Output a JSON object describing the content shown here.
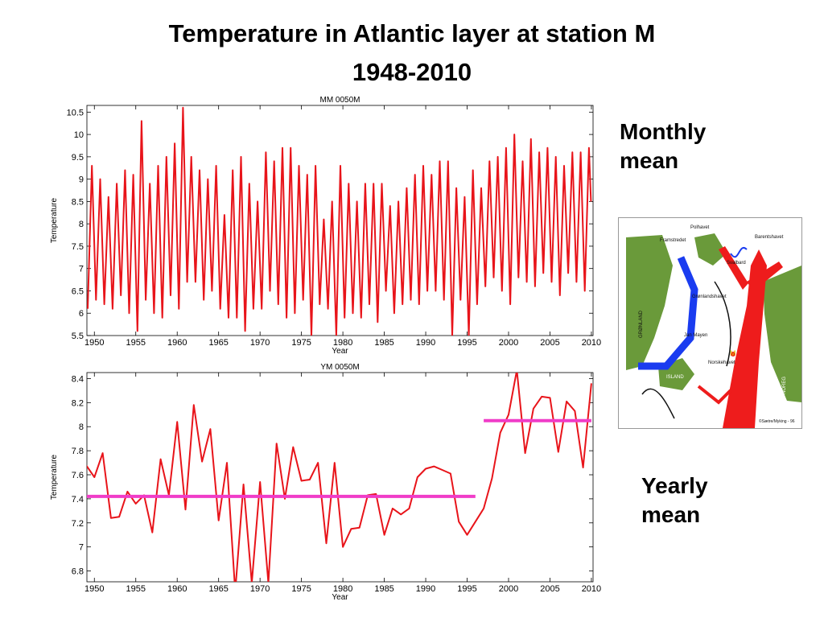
{
  "title": "Temperature in Atlantic layer at station M",
  "subtitle": "1948-2010",
  "side_labels": {
    "monthly": "Monthly mean",
    "yearly": "Yearly mean"
  },
  "map": {
    "labels": [
      "Polhavet",
      "Barentshavet",
      "Framstredet",
      "Svalbard",
      "Grønlandshavet",
      "GRØNLAND",
      "Jan Mayen",
      "Norskehavet",
      "ISLAND",
      "NOREG",
      "M",
      "©Sætre/Myking - 96"
    ]
  },
  "chart_data": [
    {
      "type": "line",
      "title": "MM 0050M",
      "xlabel": "Year",
      "ylabel": "Temperature",
      "xlim": [
        1949.1,
        2010.2
      ],
      "xticks": [
        1950,
        1955,
        1960,
        1965,
        1970,
        1975,
        1980,
        1985,
        1990,
        1995,
        2000,
        2005,
        2010
      ],
      "ylim": [
        5.5,
        10.65
      ],
      "yticks": [
        5.5,
        6,
        6.5,
        7,
        7.5,
        8,
        8.5,
        9,
        9.5,
        10,
        10.5
      ],
      "series": [
        {
          "color": "#e8141a",
          "x": [
            1949.2,
            1949.7,
            1950.2,
            1950.7,
            1951.2,
            1951.7,
            1952.2,
            1952.7,
            1953.2,
            1953.7,
            1954.2,
            1954.7,
            1955.2,
            1955.7,
            1956.2,
            1956.7,
            1957.2,
            1957.7,
            1958.2,
            1958.7,
            1959.2,
            1959.7,
            1960.2,
            1960.7,
            1961.2,
            1961.7,
            1962.2,
            1962.7,
            1963.2,
            1963.7,
            1964.2,
            1964.7,
            1965.2,
            1965.7,
            1966.2,
            1966.7,
            1967.2,
            1967.7,
            1968.2,
            1968.7,
            1969.2,
            1969.7,
            1970.2,
            1970.7,
            1971.2,
            1971.7,
            1972.2,
            1972.7,
            1973.2,
            1973.7,
            1974.2,
            1974.7,
            1975.2,
            1975.7,
            1976.2,
            1976.7,
            1977.2,
            1977.7,
            1978.2,
            1978.7,
            1979.2,
            1979.7,
            1980.2,
            1980.7,
            1981.2,
            1981.7,
            1982.2,
            1982.7,
            1983.2,
            1983.7,
            1984.2,
            1984.7,
            1985.2,
            1985.7,
            1986.2,
            1986.7,
            1987.2,
            1987.7,
            1988.2,
            1988.7,
            1989.2,
            1989.7,
            1990.2,
            1990.7,
            1991.2,
            1991.7,
            1992.2,
            1992.7,
            1993.2,
            1993.7,
            1994.2,
            1994.7,
            1995.2,
            1995.7,
            1996.2,
            1996.7,
            1997.2,
            1997.7,
            1998.2,
            1998.7,
            1999.2,
            1999.7,
            2000.2,
            2000.7,
            2001.2,
            2001.7,
            2002.2,
            2002.7,
            2003.2,
            2003.7,
            2004.2,
            2004.7,
            2005.2,
            2005.7,
            2006.2,
            2006.7,
            2007.2,
            2007.7,
            2008.2,
            2008.7,
            2009.2,
            2009.7,
            2009.95
          ],
          "values": [
            6.1,
            9.3,
            6.3,
            9.0,
            6.2,
            8.6,
            6.1,
            8.9,
            6.4,
            9.2,
            6.0,
            9.1,
            5.6,
            10.3,
            6.3,
            8.9,
            6.0,
            9.3,
            5.9,
            9.5,
            6.4,
            9.8,
            6.1,
            10.6,
            6.7,
            9.5,
            6.7,
            9.2,
            6.3,
            9.0,
            6.5,
            9.3,
            6.1,
            8.2,
            5.9,
            9.2,
            5.9,
            9.5,
            5.6,
            8.9,
            6.1,
            8.5,
            6.1,
            9.6,
            6.5,
            9.4,
            6.2,
            9.7,
            5.9,
            9.7,
            6.0,
            9.3,
            6.3,
            9.1,
            5.5,
            9.3,
            6.2,
            8.1,
            6.1,
            8.5,
            5.5,
            9.3,
            5.9,
            8.9,
            6.0,
            8.5,
            5.9,
            8.9,
            6.2,
            8.9,
            5.8,
            8.9,
            6.5,
            8.4,
            6.0,
            8.5,
            6.2,
            8.8,
            6.3,
            9.1,
            6.2,
            9.3,
            6.5,
            9.1,
            6.5,
            9.4,
            6.3,
            9.4,
            5.5,
            8.8,
            6.3,
            8.6,
            5.5,
            9.2,
            6.2,
            8.8,
            6.6,
            9.4,
            6.8,
            9.5,
            6.5,
            9.7,
            6.2,
            10.0,
            6.8,
            9.4,
            6.7,
            9.9,
            6.6,
            9.6,
            6.9,
            9.7,
            6.7,
            9.5,
            6.4,
            9.3,
            6.9,
            9.6,
            6.7,
            9.6,
            6.5,
            9.7,
            8.5
          ]
        }
      ]
    },
    {
      "type": "line",
      "title": "YM 0050M",
      "xlabel": "Year",
      "ylabel": "Temperature",
      "xlim": [
        1949.1,
        2010.2
      ],
      "xticks": [
        1950,
        1955,
        1960,
        1965,
        1970,
        1975,
        1980,
        1985,
        1990,
        1995,
        2000,
        2005,
        2010
      ],
      "ylim": [
        6.71,
        8.45
      ],
      "yticks": [
        6.8,
        7,
        7.2,
        7.4,
        7.6,
        7.8,
        8,
        8.2,
        8.4
      ],
      "series": [
        {
          "color": "#e8141a",
          "x": [
            1949,
            1950,
            1951,
            1952,
            1953,
            1954,
            1955,
            1956,
            1957,
            1958,
            1959,
            1960,
            1961,
            1962,
            1963,
            1964,
            1965,
            1966,
            1967,
            1968,
            1969,
            1970,
            1971,
            1972,
            1973,
            1974,
            1975,
            1976,
            1977,
            1978,
            1979,
            1980,
            1981,
            1982,
            1983,
            1984,
            1985,
            1986,
            1987,
            1988,
            1989,
            1990,
            1991,
            1992,
            1993,
            1994,
            1995,
            1996,
            1997,
            1998,
            1999,
            2000,
            2001,
            2002,
            2003,
            2004,
            2005,
            2006,
            2007,
            2008,
            2009,
            2010
          ],
          "values": [
            7.68,
            7.58,
            7.78,
            7.24,
            7.25,
            7.46,
            7.36,
            7.43,
            7.12,
            7.73,
            7.43,
            8.04,
            7.31,
            8.18,
            7.71,
            7.98,
            7.22,
            7.7,
            6.63,
            7.52,
            6.7,
            7.54,
            6.7,
            7.86,
            7.4,
            7.83,
            7.55,
            7.56,
            7.7,
            7.03,
            7.7,
            7.0,
            7.15,
            7.16,
            7.43,
            7.44,
            7.1,
            7.32,
            7.27,
            7.32,
            7.58,
            7.65,
            7.67,
            7.64,
            7.61,
            7.21,
            7.1,
            7.21,
            7.32,
            7.57,
            7.95,
            8.1,
            8.47,
            7.78,
            8.15,
            8.25,
            8.24,
            7.79,
            8.21,
            8.13,
            7.66,
            8.36
          ]
        },
        {
          "color": "#f03cc8",
          "width": 4,
          "x": [
            1949,
            1996
          ],
          "values": [
            7.42,
            7.42
          ]
        },
        {
          "color": "#f03cc8",
          "width": 4,
          "x": [
            1997,
            2010
          ],
          "values": [
            8.05,
            8.05
          ]
        }
      ]
    }
  ]
}
